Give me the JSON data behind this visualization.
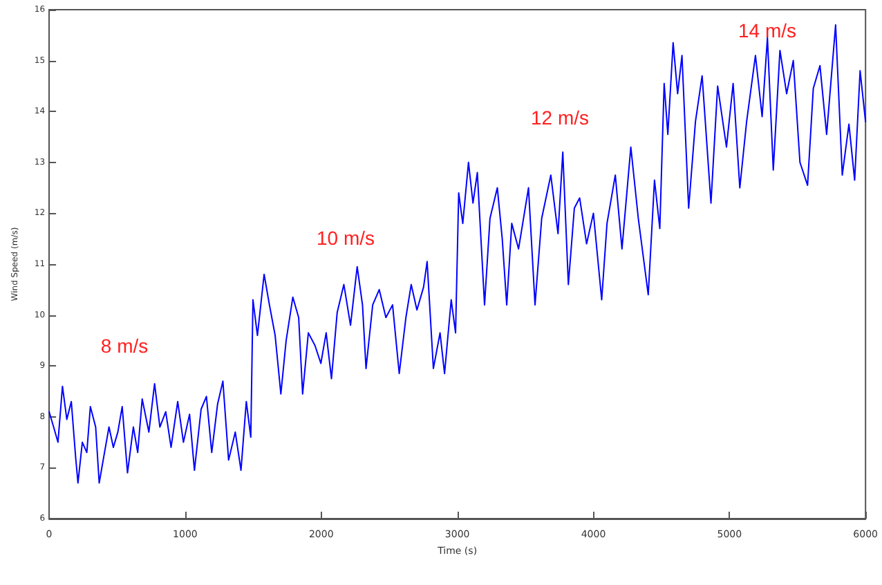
{
  "chart_data": {
    "type": "line",
    "xlabel": "Time (s)",
    "ylabel": "Wind Speed (m/s)",
    "xlim": [
      0,
      6000
    ],
    "xticks": [
      0,
      1000,
      2000,
      3000,
      4000,
      5000,
      6000
    ],
    "ylim": [
      6,
      16
    ],
    "yticks": [
      6,
      7,
      8,
      9,
      10,
      11,
      12,
      13,
      14,
      15,
      16
    ],
    "grid": false,
    "marker": "none",
    "line_style": "solid",
    "annotations": [
      "8 m/s",
      "10 m/s",
      "12 m/s",
      "14 m/s"
    ],
    "series": [
      {
        "color": "#0000ff",
        "x": [
          0,
          33,
          65,
          98,
          130,
          163,
          195,
          212,
          244,
          277,
          303,
          342,
          368,
          407,
          440,
          472,
          505,
          537,
          576,
          619,
          651,
          684,
          733,
          775,
          814,
          857,
          896,
          945,
          987,
          1032,
          1068,
          1117,
          1156,
          1195,
          1238,
          1277,
          1319,
          1368,
          1410,
          1449,
          1482,
          1498,
          1531,
          1580,
          1619,
          1661,
          1703,
          1742,
          1791,
          1834,
          1863,
          1905,
          1954,
          1997,
          2036,
          2075,
          2117,
          2166,
          2215,
          2264,
          2303,
          2329,
          2378,
          2426,
          2475,
          2524,
          2573,
          2622,
          2661,
          2703,
          2752,
          2778,
          2824,
          2873,
          2906,
          2955,
          2987,
          3010,
          3040,
          3082,
          3115,
          3147,
          3200,
          3240,
          3294,
          3330,
          3363,
          3400,
          3450,
          3523,
          3571,
          3620,
          3687,
          3740,
          3775,
          3816,
          3860,
          3899,
          3950,
          4000,
          4061,
          4100,
          4161,
          4210,
          4275,
          4330,
          4403,
          4449,
          4488,
          4520,
          4547,
          4586,
          4619,
          4651,
          4700,
          4750,
          4799,
          4864,
          4913,
          4978,
          5027,
          5076,
          5126,
          5191,
          5240,
          5279,
          5322,
          5371,
          5420,
          5469,
          5518,
          5574,
          5616,
          5665,
          5714,
          5780,
          5829,
          5878,
          5920,
          5960,
          6000
        ],
        "values": [
          8.1,
          7.8,
          7.5,
          8.6,
          7.95,
          8.3,
          7.2,
          6.7,
          7.5,
          7.3,
          8.2,
          7.8,
          6.7,
          7.3,
          7.8,
          7.4,
          7.7,
          8.2,
          6.9,
          7.8,
          7.3,
          8.35,
          7.7,
          8.65,
          7.8,
          8.1,
          7.4,
          8.3,
          7.5,
          8.05,
          6.95,
          8.15,
          8.4,
          7.3,
          8.25,
          8.7,
          7.15,
          7.7,
          6.95,
          8.3,
          7.6,
          10.3,
          9.6,
          10.8,
          10.2,
          9.6,
          8.45,
          9.5,
          10.35,
          9.95,
          8.45,
          9.65,
          9.4,
          9.05,
          9.65,
          8.75,
          10.05,
          10.6,
          9.8,
          10.95,
          10.2,
          8.95,
          10.2,
          10.5,
          9.95,
          10.2,
          8.85,
          9.95,
          10.6,
          10.1,
          10.55,
          11.05,
          8.95,
          9.65,
          8.85,
          10.3,
          9.65,
          12.4,
          11.8,
          13.0,
          12.2,
          12.8,
          10.2,
          11.9,
          12.5,
          11.5,
          10.2,
          11.8,
          11.3,
          12.5,
          10.2,
          11.9,
          12.75,
          11.6,
          13.2,
          10.6,
          12.1,
          12.3,
          11.4,
          12.0,
          10.3,
          11.8,
          12.75,
          11.3,
          13.3,
          11.9,
          10.4,
          12.65,
          11.7,
          14.55,
          13.55,
          15.35,
          14.35,
          15.1,
          12.1,
          13.8,
          14.7,
          12.2,
          14.5,
          13.3,
          14.55,
          12.5,
          13.8,
          15.1,
          13.9,
          15.45,
          12.85,
          15.2,
          14.35,
          15.0,
          13.0,
          12.55,
          14.45,
          14.9,
          13.55,
          15.7,
          12.75,
          13.75,
          12.65,
          14.8,
          13.8
        ]
      }
    ]
  }
}
